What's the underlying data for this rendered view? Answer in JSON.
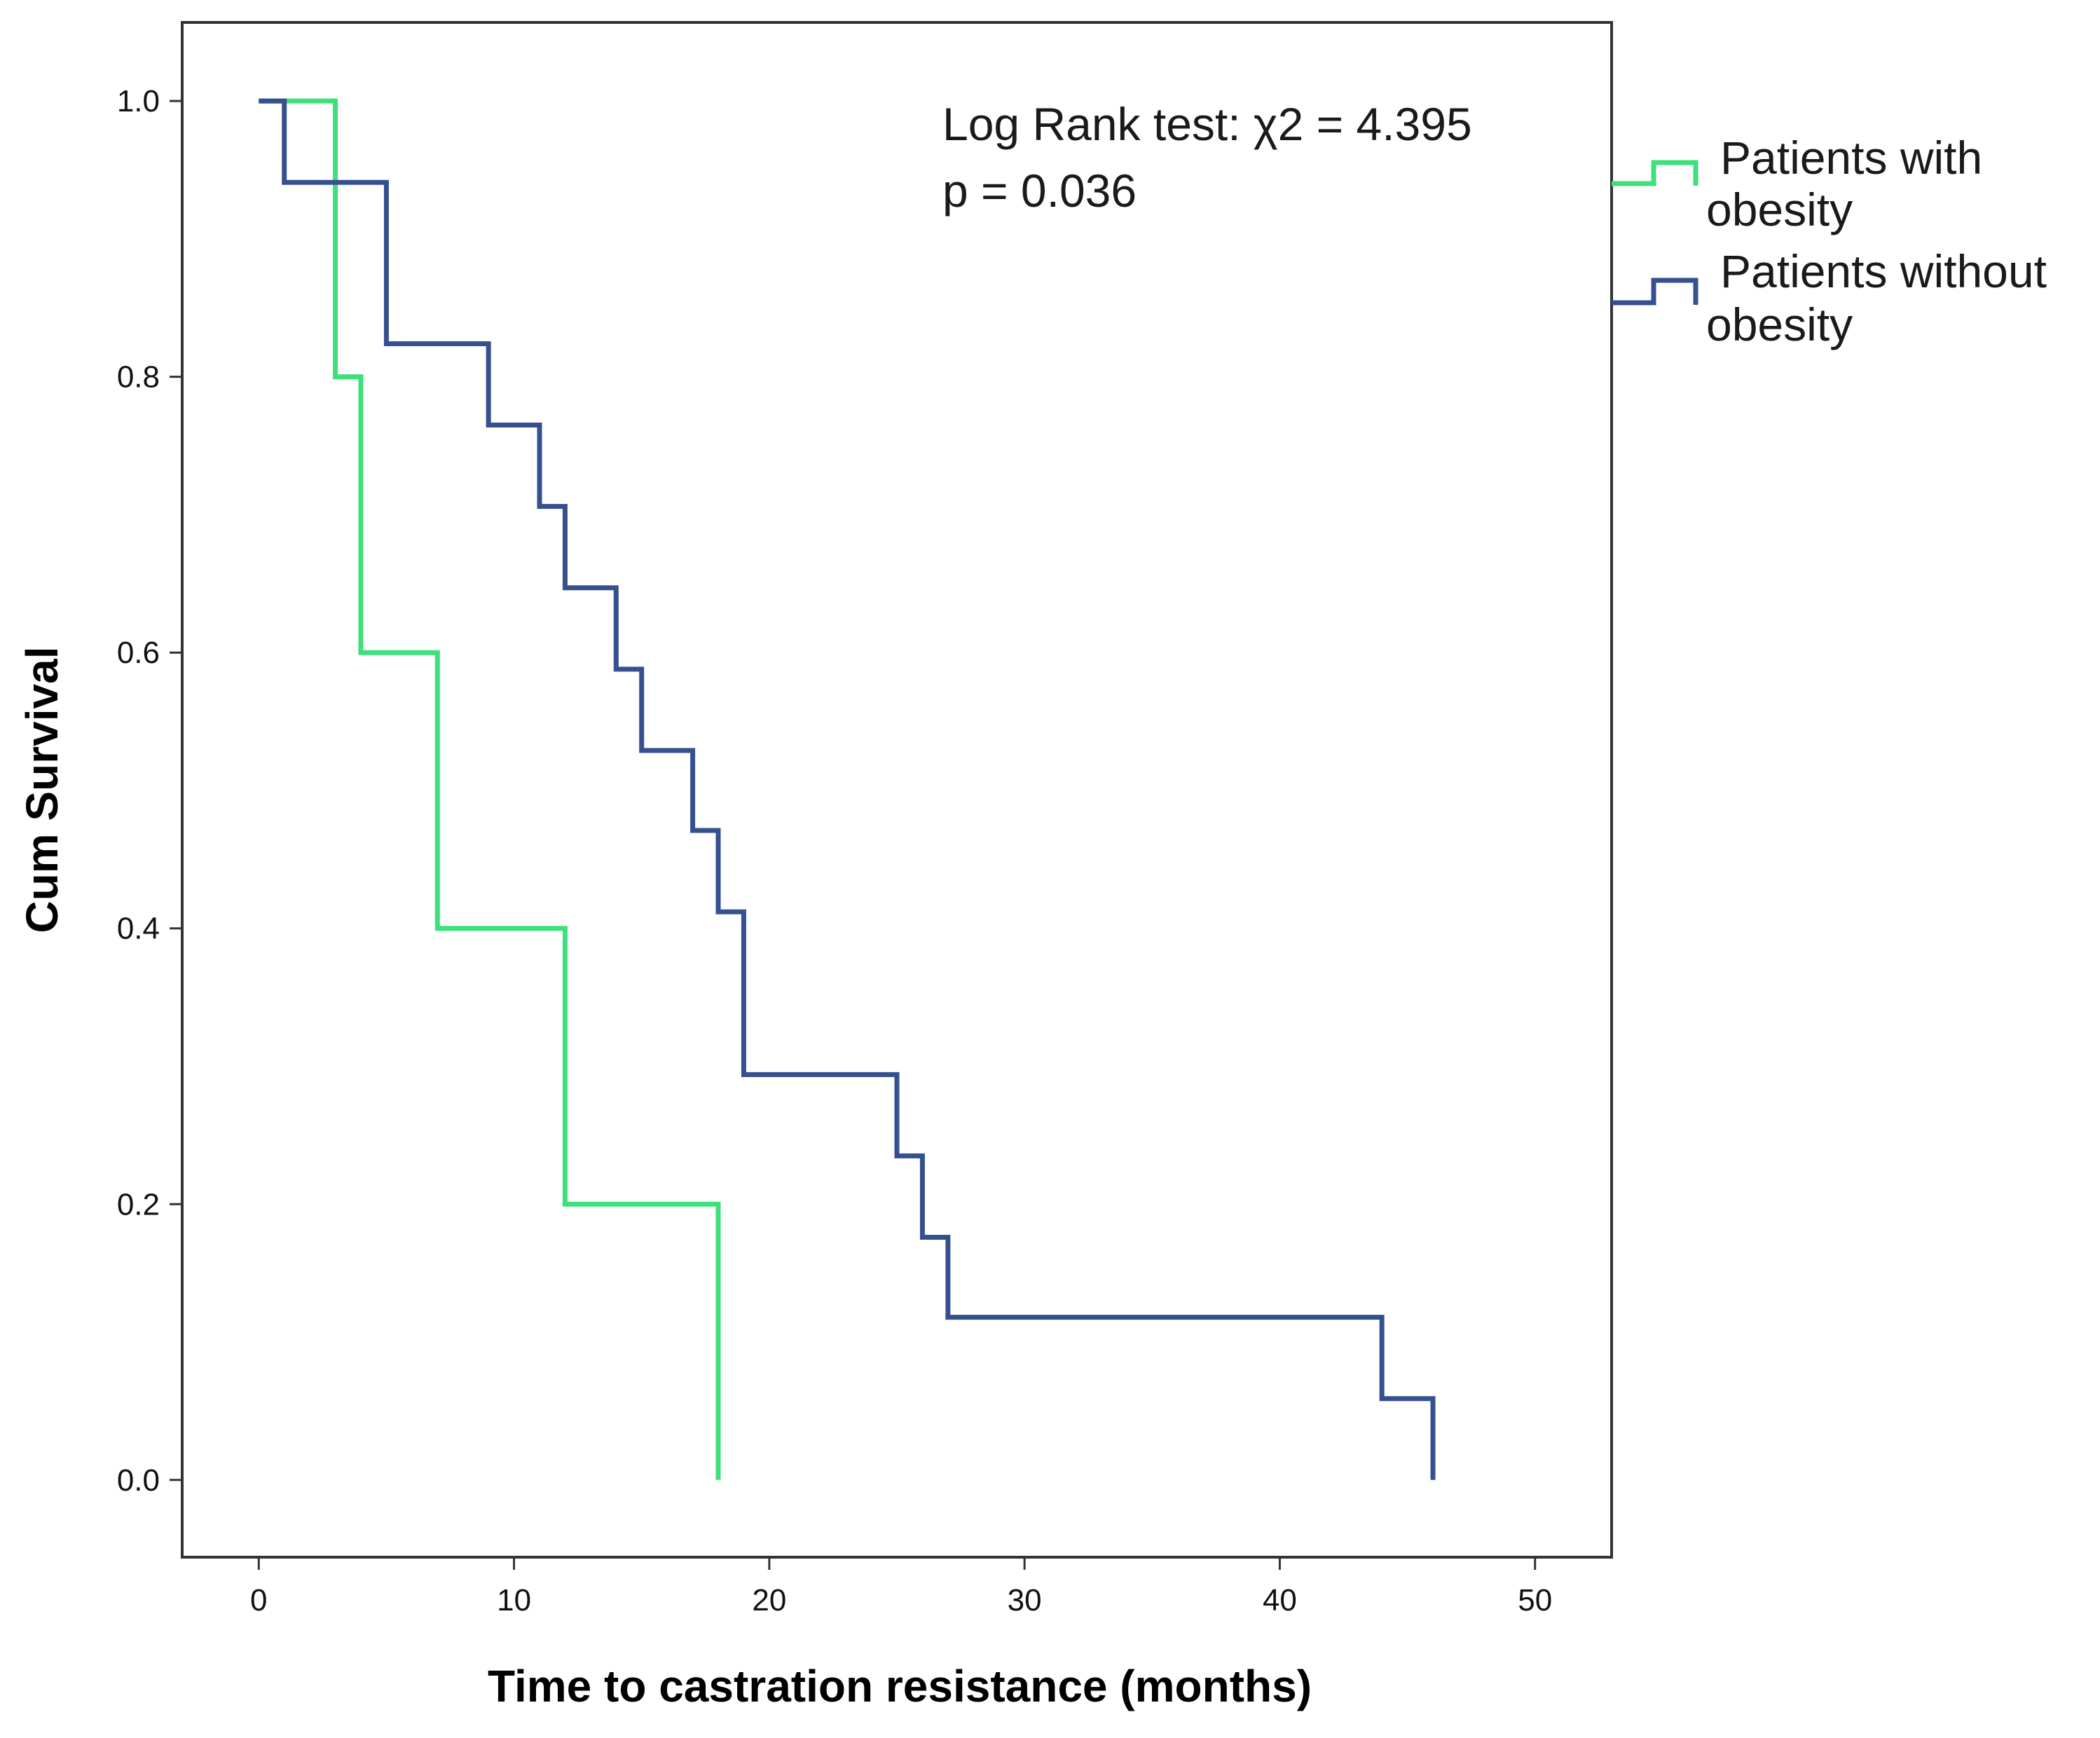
{
  "chart_data": {
    "type": "line",
    "subtype": "kaplan-meier step",
    "title": "",
    "xlabel": "Time to castration resistance (months)",
    "ylabel": "Cum Survival",
    "xlim": [
      -3,
      53
    ],
    "ylim": [
      -0.056,
      1.057
    ],
    "x_ticks": [
      0,
      10,
      20,
      30,
      40,
      50
    ],
    "y_ticks": [
      0.0,
      0.2,
      0.4,
      0.6,
      0.8,
      1.0
    ],
    "x_tick_labels": [
      "0",
      "10",
      "20",
      "30",
      "40",
      "50"
    ],
    "y_tick_labels": [
      "0.0",
      "0.2",
      "0.4",
      "0.6",
      "0.8",
      "1.0"
    ],
    "grid": false,
    "legend_position": "outside-right-top",
    "annotation": {
      "line1": "Log Rank test: χ2  = 4.395",
      "line2": "p = 0.036"
    },
    "series": [
      {
        "name": "Patients with obesity",
        "legend_line1": "Patients with",
        "legend_line2": "obesity",
        "color": "#3de07a",
        "steps": [
          [
            0,
            1.0
          ],
          [
            3,
            0.8
          ],
          [
            4,
            0.6
          ],
          [
            7,
            0.4
          ],
          [
            12,
            0.2
          ],
          [
            18,
            0.0
          ]
        ]
      },
      {
        "name": "Patients without obesity",
        "legend_line1": "Patients without",
        "legend_line2": "obesity",
        "color": "#35508f",
        "steps": [
          [
            0,
            1.0
          ],
          [
            1,
            0.941
          ],
          [
            5,
            0.824
          ],
          [
            9,
            0.765
          ],
          [
            11,
            0.706
          ],
          [
            12,
            0.647
          ],
          [
            14,
            0.588
          ],
          [
            15,
            0.529
          ],
          [
            17,
            0.471
          ],
          [
            18,
            0.412
          ],
          [
            19,
            0.294
          ],
          [
            25,
            0.235
          ],
          [
            26,
            0.176
          ],
          [
            27,
            0.118
          ],
          [
            44,
            0.059
          ],
          [
            46,
            0.0
          ]
        ]
      }
    ]
  }
}
